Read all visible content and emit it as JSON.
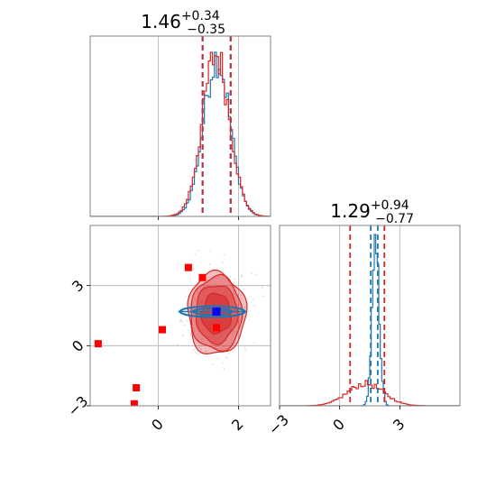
{
  "chart_data": [
    {
      "panel": "marginal-param-1",
      "type": "histogram",
      "title": {
        "median": "1.46",
        "plus": "+0.34",
        "minus": "−0.35"
      },
      "xlim": [
        -1.7,
        2.8
      ],
      "grid": true,
      "series": [
        {
          "color": "#1f77b4",
          "center": 1.46,
          "spread": 0.33,
          "quantiles": [
            1.11,
            1.8
          ]
        },
        {
          "color": "#d62728",
          "center": 1.44,
          "spread": 0.34,
          "quantiles": [
            1.1,
            1.81
          ]
        }
      ]
    },
    {
      "panel": "marginal-param-2",
      "type": "histogram",
      "title": {
        "median": "1.29",
        "plus": "+0.94",
        "minus": "−0.77"
      },
      "xlim": [
        -3,
        6
      ],
      "xticks": [
        "−3",
        "0",
        "3"
      ],
      "grid": true,
      "series": [
        {
          "color": "#1f77b4",
          "center": 1.8,
          "spread": 0.18,
          "quantiles": [
            1.55,
            1.9
          ]
        },
        {
          "color": "#d62728",
          "center": 1.29,
          "spread": 0.9,
          "quantiles": [
            0.52,
            2.23
          ]
        }
      ]
    },
    {
      "panel": "joint",
      "type": "scatter",
      "xlim": [
        -1.7,
        2.8
      ],
      "ylim": [
        -3,
        6
      ],
      "xticks": [
        "0",
        "2"
      ],
      "yticks": [
        "−3",
        "0",
        "3"
      ],
      "grid": true,
      "contour_center": [
        1.45,
        1.6
      ],
      "contour_color": "#d62728",
      "blue_ellipse": {
        "center": [
          1.35,
          1.7
        ],
        "color": "#1f77b4"
      },
      "red_points": [
        {
          "x": 0.75,
          "y": 3.9
        },
        {
          "x": 1.1,
          "y": 3.4
        },
        {
          "x": 0.1,
          "y": 0.8
        },
        {
          "x": 1.45,
          "y": 0.9
        },
        {
          "x": -1.5,
          "y": 0.1
        },
        {
          "x": -0.55,
          "y": -2.1
        },
        {
          "x": -0.6,
          "y": -2.9
        }
      ],
      "blue_points": [
        {
          "x": 1.45,
          "y": 1.7
        }
      ]
    }
  ]
}
